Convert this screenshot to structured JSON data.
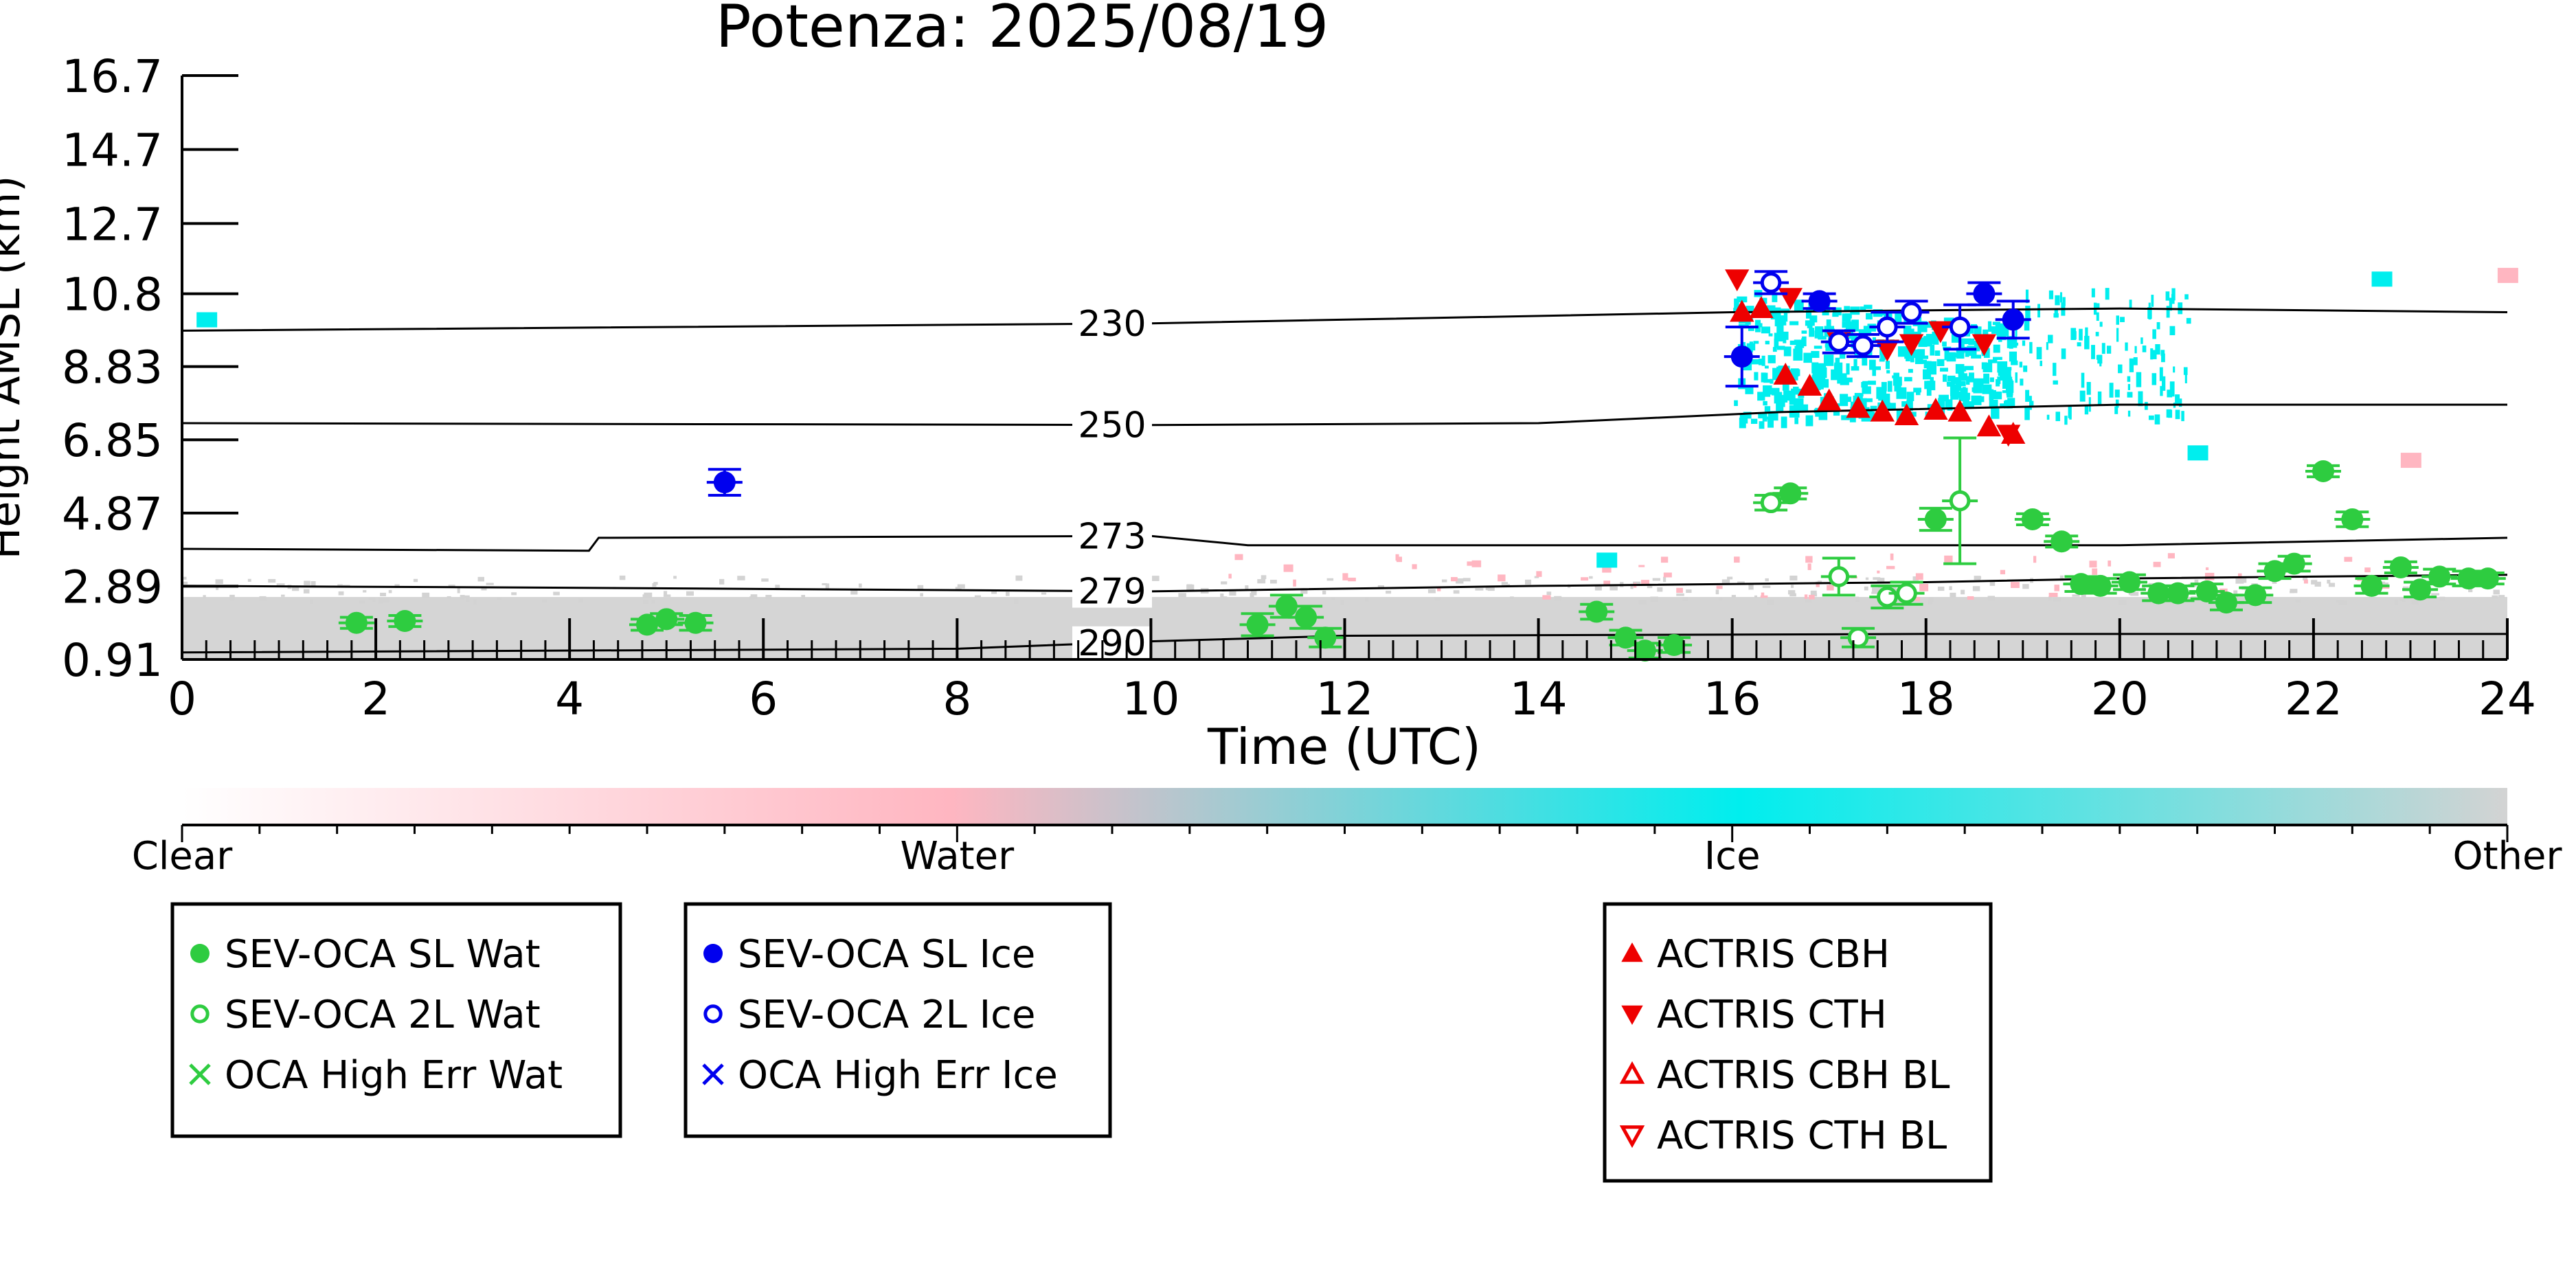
{
  "chart_data": {
    "type": "scatter",
    "title": "Potenza: 2025/08/19",
    "xlabel": "Time (UTC)",
    "ylabel": "Height AMSL (km)",
    "xlim": [
      0,
      24
    ],
    "ylim": [
      0.91,
      16.7
    ],
    "x_ticks": [
      "0",
      "2",
      "4",
      "6",
      "8",
      "10",
      "12",
      "14",
      "16",
      "18",
      "20",
      "22",
      "24"
    ],
    "y_ticks": [
      "0.91",
      "2.89",
      "4.87",
      "6.85",
      "8.83",
      "10.8",
      "12.7",
      "14.7",
      "16.7"
    ],
    "grid": false,
    "colors": {
      "water_point": "#2ecc40",
      "ice_point": "#0000ee",
      "actris": "#ee0000",
      "cloud_ice": "#00eeee",
      "cloud_water": "#ffb6c1",
      "cloud_other": "#d3d3d3",
      "isotherm": "#000000"
    },
    "isotherms": [
      {
        "label": "230",
        "points": [
          [
            0,
            9.8
          ],
          [
            10,
            10.0
          ],
          [
            16,
            10.3
          ],
          [
            20,
            10.4
          ],
          [
            24,
            10.3
          ]
        ]
      },
      {
        "label": "250",
        "points": [
          [
            0,
            7.3
          ],
          [
            10,
            7.25
          ],
          [
            14,
            7.3
          ],
          [
            16.5,
            7.6
          ],
          [
            20,
            7.8
          ],
          [
            24,
            7.8
          ]
        ]
      },
      {
        "label": "273",
        "points": [
          [
            0,
            3.9
          ],
          [
            4.2,
            3.85
          ],
          [
            4.3,
            4.2
          ],
          [
            10,
            4.25
          ],
          [
            11,
            4.0
          ],
          [
            20,
            4.0
          ],
          [
            24,
            4.2
          ]
        ]
      },
      {
        "label": "279",
        "points": [
          [
            0,
            2.9
          ],
          [
            4,
            2.85
          ],
          [
            10,
            2.75
          ],
          [
            14,
            2.9
          ],
          [
            18,
            3.0
          ],
          [
            20,
            3.1
          ],
          [
            24,
            3.2
          ]
        ]
      },
      {
        "label": "290",
        "points": [
          [
            0,
            1.1
          ],
          [
            8,
            1.2
          ],
          [
            10,
            1.4
          ],
          [
            12,
            1.55
          ],
          [
            18,
            1.6
          ],
          [
            24,
            1.6
          ]
        ]
      }
    ],
    "series": [
      {
        "name": "SEV-OCA SL Wat",
        "marker": "filled-circle",
        "color": "#2ecc40",
        "points": [
          [
            1.8,
            1.9,
            0.15
          ],
          [
            2.3,
            1.95,
            0.15
          ],
          [
            4.8,
            1.85,
            0.15
          ],
          [
            5.0,
            2.0,
            0.15
          ],
          [
            5.3,
            1.9,
            0.2
          ],
          [
            11.1,
            1.85,
            0.3
          ],
          [
            11.4,
            2.35,
            0.3
          ],
          [
            11.6,
            2.05,
            0.3
          ],
          [
            11.8,
            1.5,
            0.25
          ],
          [
            14.6,
            2.2,
            0.2
          ],
          [
            14.9,
            1.5,
            0.2
          ],
          [
            15.1,
            1.15,
            0.2
          ],
          [
            15.4,
            1.3,
            0.2
          ],
          [
            16.6,
            5.4,
            0.15
          ],
          [
            18.1,
            4.7,
            0.3
          ],
          [
            19.1,
            4.7,
            0.15
          ],
          [
            19.4,
            4.1,
            0.15
          ],
          [
            19.6,
            2.95,
            0.2
          ],
          [
            19.8,
            2.9,
            0.2
          ],
          [
            20.1,
            3.0,
            0.2
          ],
          [
            20.4,
            2.7,
            0.2
          ],
          [
            20.6,
            2.7,
            0.2
          ],
          [
            20.9,
            2.75,
            0.2
          ],
          [
            21.1,
            2.45,
            0.2
          ],
          [
            21.4,
            2.65,
            0.2
          ],
          [
            21.6,
            3.3,
            0.2
          ],
          [
            21.8,
            3.5,
            0.2
          ],
          [
            22.1,
            6.0,
            0.15
          ],
          [
            22.4,
            4.7,
            0.2
          ],
          [
            22.6,
            2.9,
            0.2
          ],
          [
            22.9,
            3.4,
            0.15
          ],
          [
            23.1,
            2.8,
            0.2
          ],
          [
            23.3,
            3.15,
            0.2
          ],
          [
            23.6,
            3.1,
            0.2
          ],
          [
            23.8,
            3.1,
            0.15
          ]
        ]
      },
      {
        "name": "SEV-OCA 2L Wat",
        "marker": "open-circle",
        "color": "#2ecc40",
        "points": [
          [
            16.4,
            5.15,
            0.2
          ],
          [
            17.1,
            3.15,
            0.5
          ],
          [
            17.3,
            1.5,
            0.25
          ],
          [
            17.6,
            2.6,
            0.3
          ],
          [
            17.8,
            2.7,
            0.3
          ],
          [
            18.35,
            5.2,
            1.7
          ]
        ]
      },
      {
        "name": "SEV-OCA SL Ice",
        "marker": "filled-circle",
        "color": "#0000ee",
        "points": [
          [
            5.6,
            5.7,
            0.35
          ],
          [
            16.1,
            9.1,
            0.8
          ],
          [
            16.9,
            10.6,
            0.2
          ],
          [
            18.6,
            10.8,
            0.3
          ],
          [
            18.9,
            10.1,
            0.5
          ]
        ]
      },
      {
        "name": "SEV-OCA 2L Ice",
        "marker": "open-circle",
        "color": "#0000ee",
        "points": [
          [
            16.4,
            11.1,
            0.3
          ],
          [
            17.1,
            9.5,
            0.3
          ],
          [
            17.35,
            9.4,
            0.3
          ],
          [
            17.6,
            9.9,
            0.4
          ],
          [
            17.85,
            10.3,
            0.3
          ],
          [
            18.35,
            9.9,
            0.6
          ]
        ]
      },
      {
        "name": "OCA High Err Wat",
        "marker": "x",
        "color": "#2ecc40",
        "points": []
      },
      {
        "name": "OCA High Err Ice",
        "marker": "x",
        "color": "#0000ee",
        "points": []
      },
      {
        "name": "ACTRIS CBH",
        "marker": "filled-triangle-up",
        "color": "#ee0000",
        "points": [
          [
            16.1,
            10.3
          ],
          [
            16.3,
            10.4
          ],
          [
            16.55,
            8.6
          ],
          [
            16.8,
            8.3
          ],
          [
            17.0,
            7.9
          ],
          [
            17.3,
            7.7
          ],
          [
            17.55,
            7.6
          ],
          [
            17.8,
            7.5
          ],
          [
            18.1,
            7.65
          ],
          [
            18.35,
            7.6
          ],
          [
            18.65,
            7.2
          ],
          [
            18.9,
            7.0
          ]
        ]
      },
      {
        "name": "ACTRIS CTH",
        "marker": "filled-triangle-down",
        "color": "#ee0000",
        "points": [
          [
            16.05,
            11.2
          ],
          [
            16.6,
            10.7
          ],
          [
            17.1,
            9.5
          ],
          [
            17.6,
            9.3
          ],
          [
            17.85,
            9.45
          ],
          [
            18.15,
            9.8
          ],
          [
            18.6,
            9.45
          ],
          [
            18.85,
            7.0
          ]
        ]
      },
      {
        "name": "ACTRIS CBH BL",
        "marker": "open-triangle-up",
        "color": "#ee0000",
        "points": []
      },
      {
        "name": "ACTRIS CTH BL",
        "marker": "open-triangle-down",
        "color": "#ee0000",
        "points": []
      }
    ],
    "colorbar": {
      "labels": [
        "Clear",
        "Water",
        "Ice",
        "Other"
      ],
      "stops": [
        {
          "at": 0.0,
          "color": "#ffffff"
        },
        {
          "at": 0.33,
          "color": "#ffb6c1"
        },
        {
          "at": 0.67,
          "color": "#00eeee"
        },
        {
          "at": 1.0,
          "color": "#d3d3d3"
        }
      ]
    },
    "legend_groups": [
      [
        "SEV-OCA SL Wat",
        "SEV-OCA 2L Wat",
        "OCA High Err Wat"
      ],
      [
        "SEV-OCA SL Ice",
        "SEV-OCA 2L Ice",
        "OCA High Err Ice"
      ],
      [
        "ACTRIS CBH",
        "ACTRIS CTH",
        "ACTRIS CBH BL",
        "ACTRIS CTH BL"
      ]
    ],
    "legend_placement": "bottom"
  }
}
